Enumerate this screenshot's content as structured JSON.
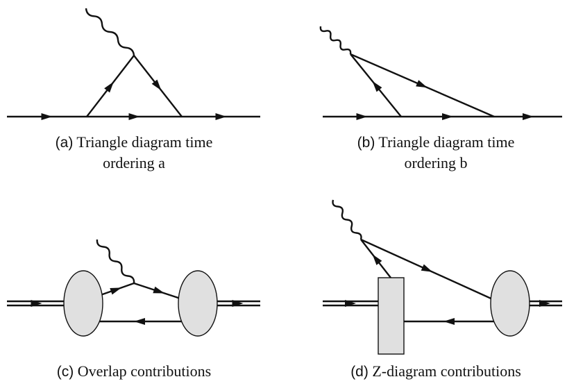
{
  "panels": [
    {
      "label": "(a)",
      "caption_lines": [
        "Triangle diagram time",
        "ordering a"
      ]
    },
    {
      "label": "(b)",
      "caption_lines": [
        "Triangle diagram time",
        "ordering b"
      ]
    },
    {
      "label": "(c)",
      "caption_lines": [
        "Overlap contributions"
      ]
    },
    {
      "label": "(d)",
      "caption_lines": [
        "Z-diagram contributions"
      ]
    }
  ]
}
